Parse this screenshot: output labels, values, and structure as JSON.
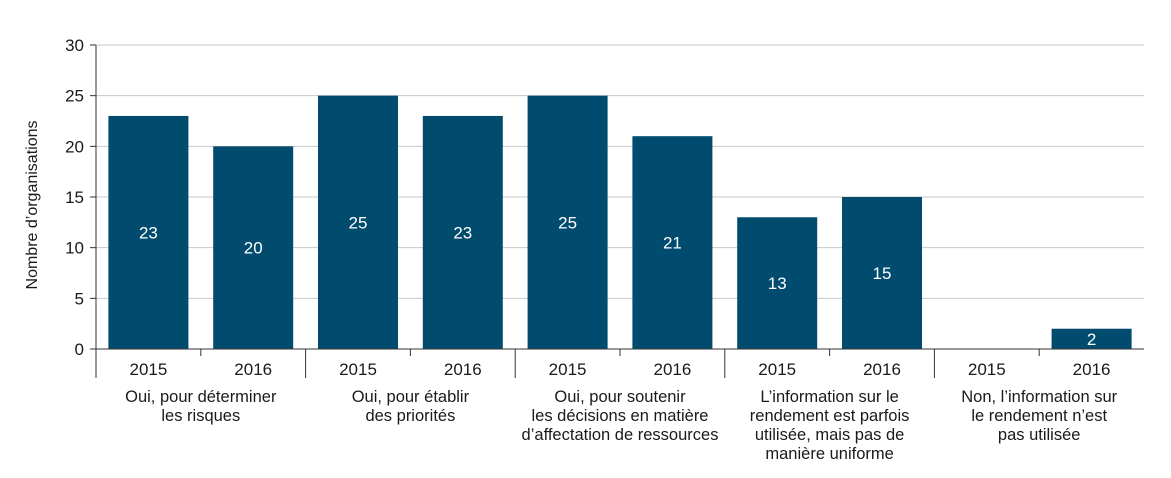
{
  "chart_data": {
    "type": "bar",
    "ylabel": "Nombre d’organisations",
    "ylim": [
      0,
      30
    ],
    "yticks": [
      "0",
      "5",
      "10",
      "15",
      "20",
      "25",
      "30"
    ],
    "grid": true,
    "bar_color": "#004b6e",
    "grid_color": "#c8c8c8",
    "groups": [
      {
        "label_lines": [
          "Oui, pour déterminer",
          "les risques"
        ],
        "bars": [
          {
            "year": "2015",
            "value": 23,
            "label": "23"
          },
          {
            "year": "2016",
            "value": 20,
            "label": "20"
          }
        ]
      },
      {
        "label_lines": [
          "Oui, pour établir",
          "des priorités"
        ],
        "bars": [
          {
            "year": "2015",
            "value": 25,
            "label": "25"
          },
          {
            "year": "2016",
            "value": 23,
            "label": "23"
          }
        ]
      },
      {
        "label_lines": [
          "Oui, pour soutenir",
          "les décisions en matière",
          "d’affectation de ressources"
        ],
        "bars": [
          {
            "year": "2015",
            "value": 25,
            "label": "25"
          },
          {
            "year": "2016",
            "value": 21,
            "label": "21"
          }
        ]
      },
      {
        "label_lines": [
          "L’information sur le",
          "rendement est parfois",
          "utilisée, mais pas de",
          "manière uniforme"
        ],
        "bars": [
          {
            "year": "2015",
            "value": 13,
            "label": "13"
          },
          {
            "year": "2016",
            "value": 15,
            "label": "15"
          }
        ]
      },
      {
        "label_lines": [
          "Non, l’information sur",
          "le rendement n’est",
          "pas utilisée"
        ],
        "bars": [
          {
            "year": "2015",
            "value": 0,
            "label": ""
          },
          {
            "year": "2016",
            "value": 2,
            "label": "2"
          }
        ]
      }
    ]
  }
}
